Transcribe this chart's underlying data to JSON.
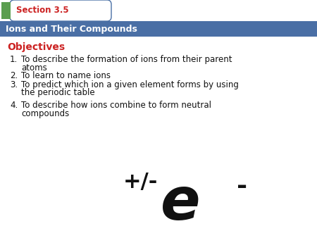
{
  "section_label": "Section 3.5",
  "header_text": "Ions and Their Compounds",
  "objectives_label": "Objectives",
  "items": [
    "To describe the formation of ions from their parent\natoms",
    "To learn to name ions",
    "To predict which ion a given element forms by using\nthe periodic table",
    "To describe how ions combine to form neutral\ncompounds"
  ],
  "symbol_plus_minus": "+/-",
  "symbol_e": "e",
  "symbol_superscript": "-",
  "bg_color": "#ffffff",
  "header_bg_color": "#4a6fa5",
  "section_bg_color": "#ffffff",
  "section_border_color": "#4a6fa5",
  "green_rect_color": "#5b9e50",
  "section_text_color": "#cc2222",
  "header_text_color": "#ffffff",
  "objectives_color": "#cc2222",
  "item_text_color": "#111111",
  "symbol_color": "#111111",
  "tab_curve_color": "#4a6fa5"
}
